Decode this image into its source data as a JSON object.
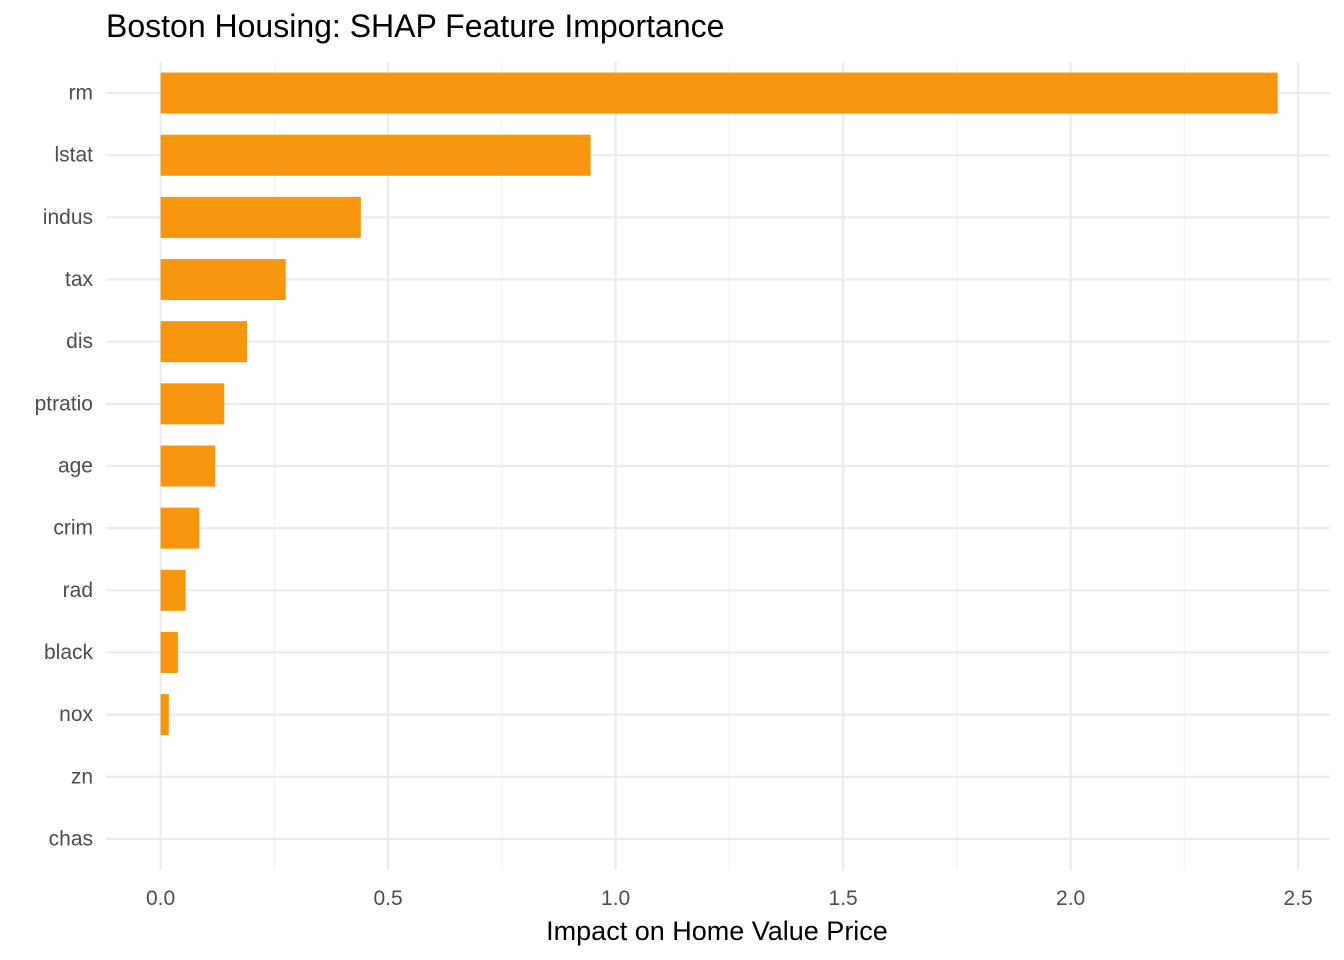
{
  "chart_data": {
    "type": "bar",
    "orientation": "horizontal",
    "title": "Boston Housing: SHAP Feature Importance",
    "xlabel": "Impact on Home Value Price",
    "ylabel": "",
    "categories": [
      "rm",
      "lstat",
      "indus",
      "tax",
      "dis",
      "ptratio",
      "age",
      "crim",
      "rad",
      "black",
      "nox",
      "zn",
      "chas"
    ],
    "values": [
      2.455,
      0.945,
      0.44,
      0.275,
      0.19,
      0.14,
      0.12,
      0.085,
      0.055,
      0.038,
      0.018,
      0.0,
      0.0
    ],
    "xlim": [
      -0.12,
      2.57
    ],
    "xticks": [
      0.0,
      0.5,
      1.0,
      1.5,
      2.0,
      2.5
    ],
    "xtick_labels": [
      "0.0",
      "0.5",
      "1.0",
      "1.5",
      "2.0",
      "2.5"
    ],
    "grid": true,
    "legend": "none",
    "colors": {
      "bar": "#f8960f",
      "grid_major": "#ebebeb",
      "grid_minor": "#f2f2f2",
      "tick_text": "#4d4d4d",
      "title_text": "#000000"
    }
  }
}
